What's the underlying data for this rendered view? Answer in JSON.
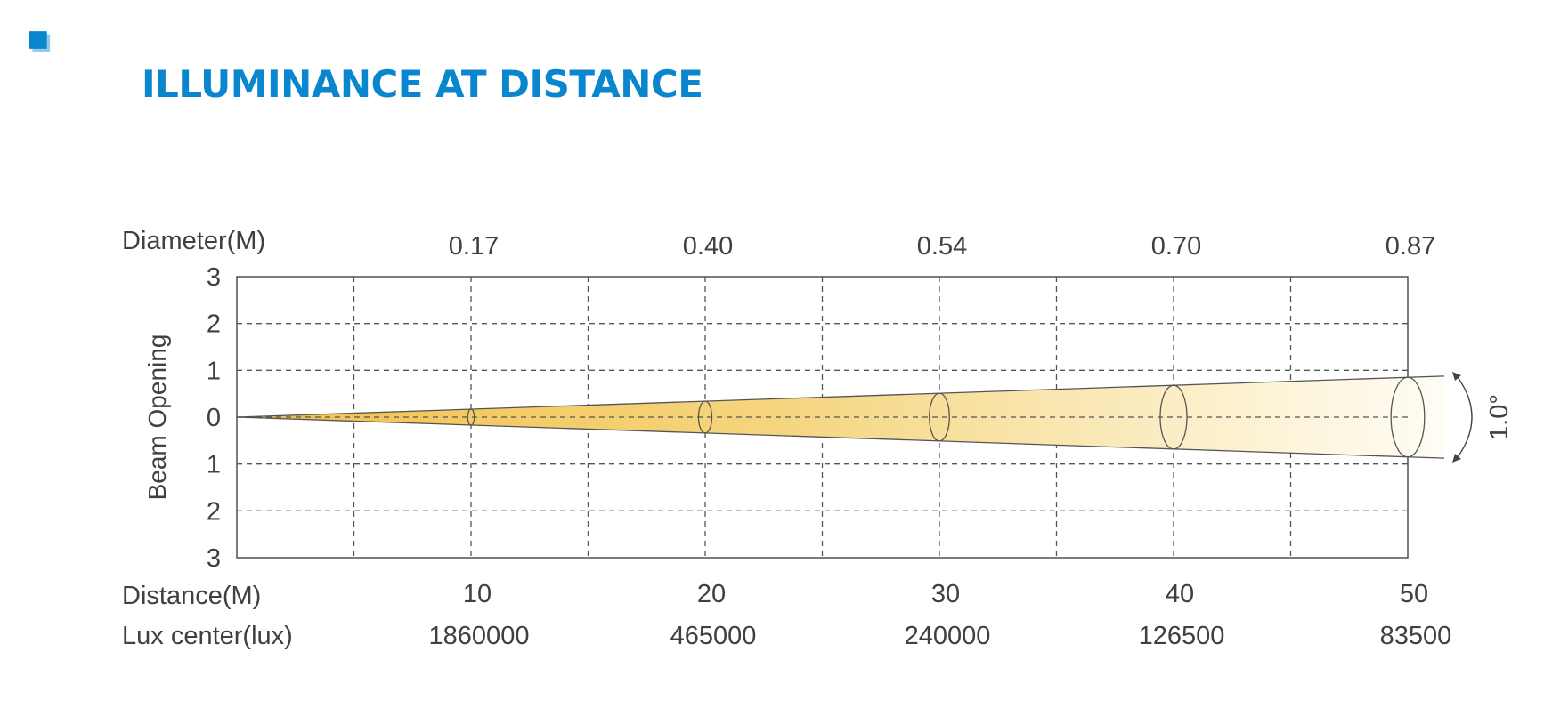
{
  "header": {
    "title": "ILLUMINANCE AT DISTANCE",
    "accent_color": "#0a86cf",
    "accent_light": "#8fcbec",
    "icon": "square-icon"
  },
  "chart_data": {
    "type": "beam-diagram",
    "row_labels": {
      "diameter": "Diameter(M)",
      "distance": "Distance(M)",
      "lux": "Lux center(lux)"
    },
    "ylabel": "Beam Opening",
    "y_ticks": [
      "3",
      "2",
      "1",
      "0",
      "1",
      "2",
      "3"
    ],
    "ylim": [
      -3,
      3
    ],
    "xlim": [
      0,
      50
    ],
    "beam_angle_label": "1.0°",
    "distances": [
      10,
      20,
      30,
      40,
      50
    ],
    "distance_labels": [
      "10",
      "20",
      "30",
      "40",
      "50"
    ],
    "diameters": [
      "0.17",
      "0.40",
      "0.54",
      "0.70",
      "0.87"
    ],
    "lux_center": [
      "1860000",
      "465000",
      "240000",
      "126500",
      "83500"
    ],
    "colors": {
      "beam_start": "#f2c14e",
      "beam_end": "#fffdf5",
      "outline": "#555555"
    },
    "grid": true
  }
}
